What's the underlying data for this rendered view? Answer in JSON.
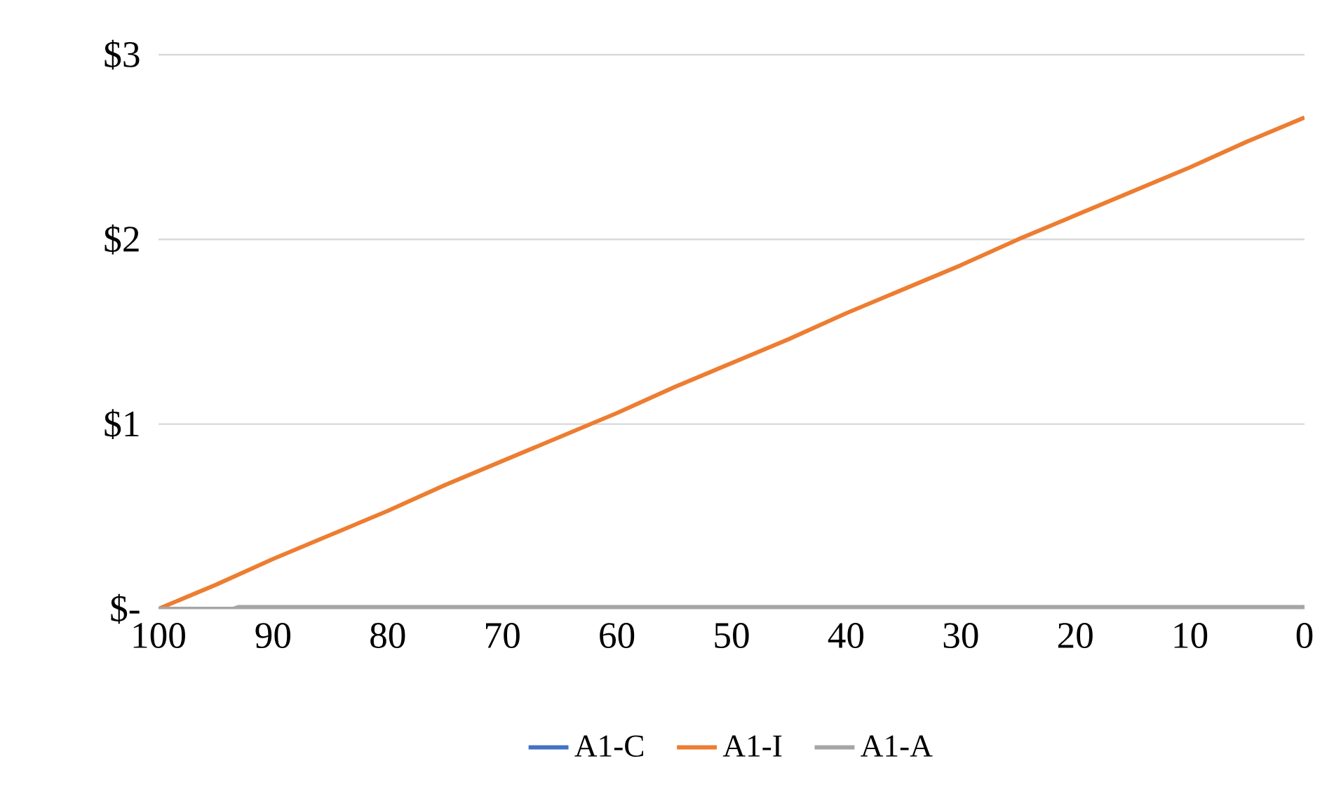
{
  "chart_data": {
    "type": "line",
    "xlim": [
      100,
      0
    ],
    "xticks": [
      100,
      90,
      80,
      70,
      60,
      50,
      40,
      30,
      20,
      10,
      0
    ],
    "ylim": [
      0,
      3
    ],
    "yticks": [
      {
        "value": 0,
        "label": "$-"
      },
      {
        "value": 1,
        "label": "$1"
      },
      {
        "value": 2,
        "label": "$2"
      },
      {
        "value": 3,
        "label": "$3"
      }
    ],
    "grid": "y",
    "legend": "bottom",
    "marker": "none",
    "line_style": "solid",
    "series": [
      {
        "name": "A1-C",
        "color": "#4472c4"
      },
      {
        "name": "A1-I",
        "color": "#ed7d31",
        "x": [
          100,
          95,
          90,
          85,
          80,
          75,
          70,
          65,
          60,
          55,
          50,
          45,
          40,
          35,
          30,
          25,
          20,
          15,
          10,
          5,
          0
        ],
        "values": [
          0,
          0.13,
          0.27,
          0.4,
          0.53,
          0.67,
          0.8,
          0.93,
          1.06,
          1.2,
          1.33,
          1.46,
          1.6,
          1.73,
          1.86,
          2.0,
          2.13,
          2.26,
          2.39,
          2.53,
          2.66
        ]
      },
      {
        "name": "A1-A",
        "color": "#a5a5a5",
        "x": [
          100,
          93.5,
          93,
          0
        ],
        "values": [
          0,
          0,
          0.01,
          0.01
        ]
      }
    ]
  }
}
